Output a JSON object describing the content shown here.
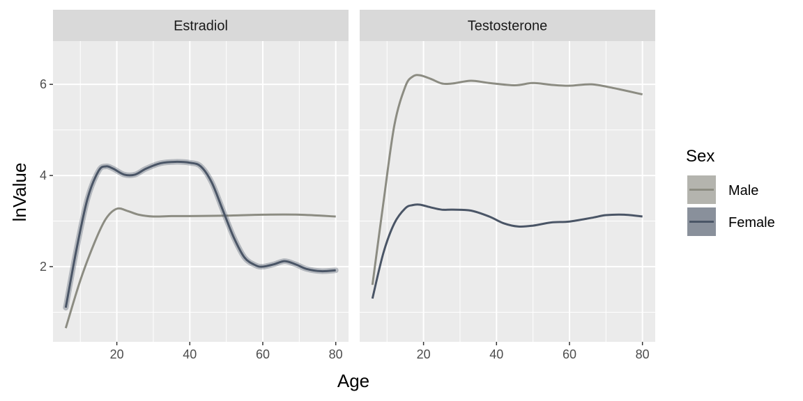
{
  "chart_data": {
    "type": "line",
    "facet_by": "hormone",
    "xlabel": "Age",
    "ylabel": "lnValue",
    "xlim": [
      2.5,
      83.5
    ],
    "ylim": [
      0.35,
      6.95
    ],
    "x_ticks": [
      20,
      40,
      60,
      80
    ],
    "y_ticks": [
      2,
      4,
      6
    ],
    "grid": true,
    "legend": {
      "title": "Sex",
      "position": "right",
      "entries": [
        {
          "name": "Male",
          "color": "#8c8c82"
        },
        {
          "name": "Female",
          "color": "#4a5566"
        }
      ]
    },
    "panels": [
      {
        "title": "Estradiol",
        "series": [
          {
            "name": "Male",
            "color": "#8c8c82",
            "x": [
              6,
              10,
              14,
              17,
              20,
              23,
              26,
              30,
              35,
              40,
              50,
              60,
              70,
              80
            ],
            "y": [
              0.65,
              1.7,
              2.55,
              3.05,
              3.27,
              3.22,
              3.14,
              3.1,
              3.11,
              3.11,
              3.12,
              3.14,
              3.14,
              3.1
            ]
          },
          {
            "name": "Female",
            "color": "#4a5566",
            "x": [
              6,
              9,
              12,
              15,
              17,
              19,
              22,
              25,
              28,
              32,
              36,
              40,
              43,
              46,
              49,
              52,
              55,
              58,
              60,
              63,
              66,
              69,
              72,
              76,
              80
            ],
            "y": [
              1.1,
              2.4,
              3.5,
              4.1,
              4.2,
              4.15,
              4.02,
              4.02,
              4.15,
              4.27,
              4.3,
              4.28,
              4.2,
              3.85,
              3.25,
              2.65,
              2.2,
              2.03,
              2.0,
              2.05,
              2.12,
              2.05,
              1.95,
              1.9,
              1.92
            ]
          }
        ]
      },
      {
        "title": "Testosterone",
        "series": [
          {
            "name": "Male",
            "color": "#8c8c82",
            "x": [
              6,
              9,
              12,
              15,
              17,
              19,
              22,
              25,
              28,
              33,
              38,
              45,
              50,
              55,
              60,
              66,
              72,
              80
            ],
            "y": [
              1.6,
              3.4,
              5.1,
              5.95,
              6.17,
              6.2,
              6.12,
              6.02,
              6.02,
              6.08,
              6.03,
              5.98,
              6.03,
              5.99,
              5.97,
              6.0,
              5.92,
              5.78
            ]
          },
          {
            "name": "Female",
            "color": "#4a5566",
            "x": [
              6,
              9,
              12,
              15,
              17,
              19,
              22,
              25,
              28,
              33,
              38,
              42,
              46,
              50,
              55,
              60,
              66,
              70,
              75,
              80
            ],
            "y": [
              1.3,
              2.3,
              2.95,
              3.28,
              3.35,
              3.36,
              3.3,
              3.25,
              3.25,
              3.23,
              3.1,
              2.95,
              2.88,
              2.9,
              2.97,
              2.99,
              3.07,
              3.13,
              3.14,
              3.1
            ]
          }
        ]
      }
    ]
  }
}
